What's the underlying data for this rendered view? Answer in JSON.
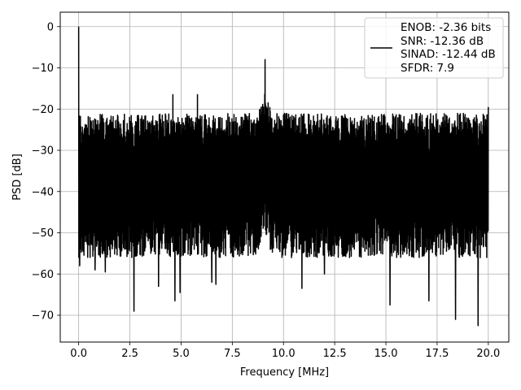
{
  "chart_data": {
    "type": "line",
    "title": "",
    "xlabel": "Frequency [MHz]",
    "ylabel": "PSD [dB]",
    "xlim": [
      -0.9,
      21.0
    ],
    "ylim": [
      -76.5,
      3.5
    ],
    "xticks": [
      0.0,
      2.5,
      5.0,
      7.5,
      10.0,
      12.5,
      15.0,
      17.5,
      20.0
    ],
    "xtick_labels": [
      "0.0",
      "2.5",
      "5.0",
      "7.5",
      "10.0",
      "12.5",
      "15.0",
      "17.5",
      "20.0"
    ],
    "yticks": [
      0,
      -10,
      -20,
      -30,
      -40,
      -50,
      -60,
      -70
    ],
    "ytick_labels": [
      "0",
      "−10",
      "−20",
      "−30",
      "−40",
      "−50",
      "−60",
      "−70"
    ],
    "grid": true,
    "legend_position": "top-right",
    "legend_lines": [
      "ENOB: -2.36 bits",
      "SNR: -12.36 dB",
      "SINAD: -12.44 dB",
      "SFDR: 7.9"
    ],
    "series_color": "#000000",
    "series": [
      {
        "name": "ENOB: -2.36 bits SNR: -12.36 dB SINAD: -12.44 dB SFDR: 7.9",
        "noise_floor_upper_db": -24,
        "noise_floor_lower_db": -50,
        "x_range_mhz": [
          0.0,
          20.0
        ],
        "peaks": [
          {
            "x": 0.0,
            "y": 0.0
          },
          {
            "x": 0.05,
            "y": -14.0
          },
          {
            "x": 4.6,
            "y": -16.5
          },
          {
            "x": 5.8,
            "y": -16.5
          },
          {
            "x": 9.1,
            "y": -8.0
          },
          {
            "x": 20.0,
            "y": -19.5
          }
        ],
        "dips": [
          {
            "x": 0.05,
            "y": -58.0
          },
          {
            "x": 0.8,
            "y": -59.0
          },
          {
            "x": 1.3,
            "y": -59.5
          },
          {
            "x": 2.7,
            "y": -69.0
          },
          {
            "x": 3.9,
            "y": -63.0
          },
          {
            "x": 4.7,
            "y": -66.5
          },
          {
            "x": 4.95,
            "y": -64.5
          },
          {
            "x": 6.5,
            "y": -62.0
          },
          {
            "x": 6.7,
            "y": -62.5
          },
          {
            "x": 10.9,
            "y": -63.5
          },
          {
            "x": 12.0,
            "y": -60.0
          },
          {
            "x": 15.2,
            "y": -67.5
          },
          {
            "x": 17.1,
            "y": -66.5
          },
          {
            "x": 18.4,
            "y": -71.0
          },
          {
            "x": 19.5,
            "y": -72.5
          }
        ]
      }
    ]
  }
}
